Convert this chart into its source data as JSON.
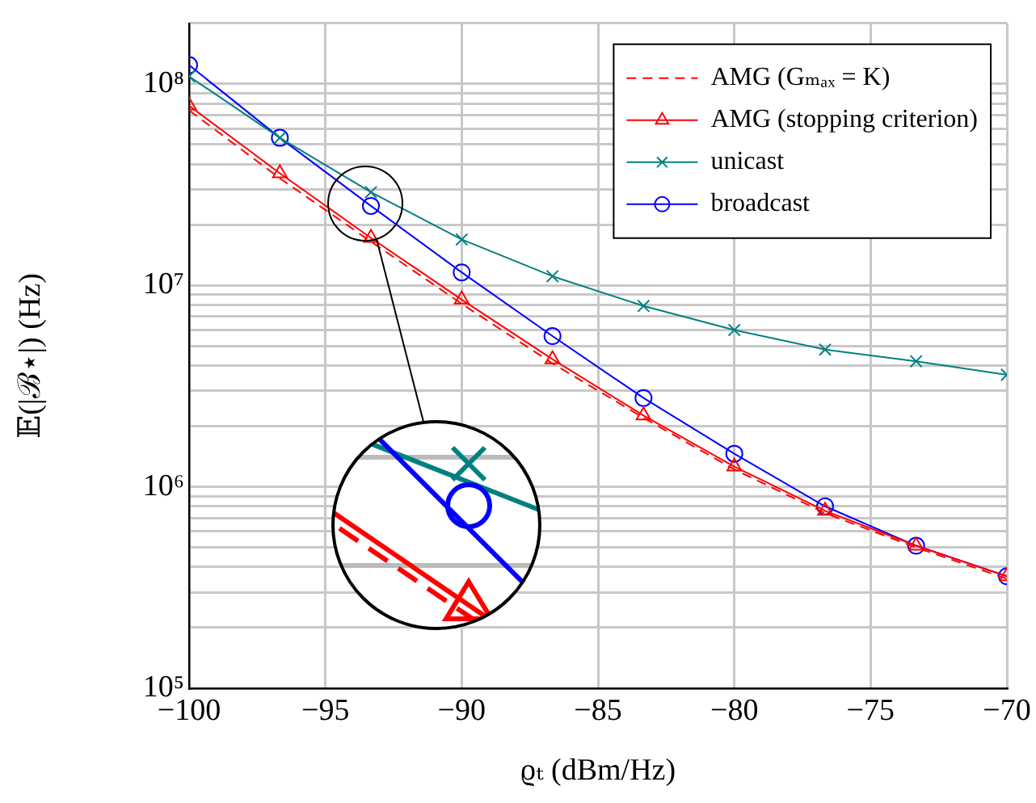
{
  "chart_data": {
    "type": "line",
    "xlabel": "ϱₜ (dBm/Hz)",
    "ylabel": "𝔼(|ℬ⋆|) (Hz)",
    "log": "y",
    "grid": true,
    "legend": "top right",
    "x": [
      -100,
      -96.67,
      -93.33,
      -90,
      -86.67,
      -83.33,
      -80,
      -76.67,
      -73.33,
      -70
    ],
    "xlim": [
      -100,
      -70
    ],
    "xticks": [
      {
        "value": -100,
        "label": "−100"
      },
      {
        "value": -95,
        "label": "−95"
      },
      {
        "value": -90,
        "label": "−90"
      },
      {
        "value": -85,
        "label": "−85"
      },
      {
        "value": -80,
        "label": "−80"
      },
      {
        "value": -75,
        "label": "−75"
      },
      {
        "value": -70,
        "label": "−70"
      }
    ],
    "ylim": [
      100000,
      200000000
    ],
    "yticks": [
      {
        "value": 100000,
        "label": "10⁵"
      },
      {
        "value": 200000,
        "label": null
      },
      {
        "value": 300000,
        "label": null
      },
      {
        "value": 400000,
        "label": null
      },
      {
        "value": 500000,
        "label": null
      },
      {
        "value": 600000,
        "label": null
      },
      {
        "value": 700000,
        "label": null
      },
      {
        "value": 800000,
        "label": null
      },
      {
        "value": 900000,
        "label": null
      },
      {
        "value": 1000000,
        "label": "10⁶"
      },
      {
        "value": 2000000,
        "label": null
      },
      {
        "value": 3000000,
        "label": null
      },
      {
        "value": 4000000,
        "label": null
      },
      {
        "value": 5000000,
        "label": null
      },
      {
        "value": 6000000,
        "label": null
      },
      {
        "value": 7000000,
        "label": null
      },
      {
        "value": 8000000,
        "label": null
      },
      {
        "value": 9000000,
        "label": null
      },
      {
        "value": 10000000,
        "label": "10⁷"
      },
      {
        "value": 20000000,
        "label": null
      },
      {
        "value": 30000000,
        "label": null
      },
      {
        "value": 40000000,
        "label": null
      },
      {
        "value": 50000000,
        "label": null
      },
      {
        "value": 60000000,
        "label": null
      },
      {
        "value": 70000000,
        "label": null
      },
      {
        "value": 80000000,
        "label": null
      },
      {
        "value": 90000000,
        "label": null
      },
      {
        "value": 100000000,
        "label": "10⁸"
      },
      {
        "value": 200000000,
        "label": null
      }
    ],
    "series": [
      {
        "name": "AMG (Gₘₐₓ = K)",
        "color": "#ff0000",
        "marker": "none",
        "line_style": "dashed",
        "values": [
          74000000,
          34000000,
          16500000,
          8100000,
          4100000,
          2200000,
          1220000,
          740000,
          500000,
          350000
        ]
      },
      {
        "name": "AMG (stopping criterion)",
        "color": "#ff0000",
        "marker": "triangle",
        "line_style": "solid",
        "values": [
          78000000,
          36000000,
          17200000,
          8500000,
          4300000,
          2260000,
          1260000,
          760000,
          510000,
          360000
        ]
      },
      {
        "name": "unicast",
        "color": "#008080",
        "marker": "cross",
        "line_style": "solid",
        "values": [
          109000000,
          54000000,
          29000000,
          16900000,
          11100000,
          7900000,
          6000000,
          4800000,
          4200000,
          3600000
        ]
      },
      {
        "name": "broadcast",
        "color": "#0000ff",
        "marker": "circle",
        "line_style": "solid",
        "values": [
          124000000,
          54000000,
          24800000,
          11600000,
          5600000,
          2760000,
          1460000,
          800000,
          510000,
          360000
        ]
      }
    ]
  }
}
